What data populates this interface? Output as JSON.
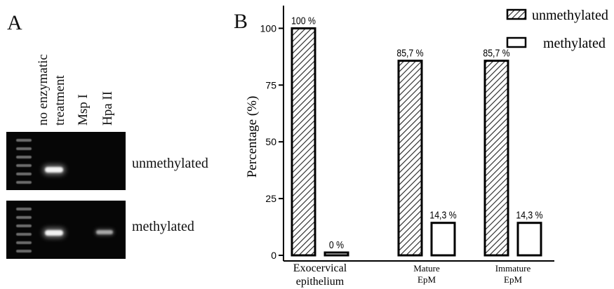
{
  "panel_a": {
    "letter": "A",
    "lane_labels": [
      "no enzymatic",
      "treatment",
      "Msp I",
      "Hpa II"
    ],
    "gels": [
      {
        "label": "unmethylated",
        "bands": [
          {
            "lane": 1,
            "intensity": "bright"
          }
        ]
      },
      {
        "label": "methylated",
        "bands": [
          {
            "lane": 1,
            "intensity": "bright"
          },
          {
            "lane": 3,
            "intensity": "faint"
          }
        ]
      }
    ]
  },
  "panel_b": {
    "letter": "B"
  },
  "chart_data": {
    "type": "bar",
    "title": "",
    "xlabel": "",
    "ylabel": "Percentage (%)",
    "ylim": [
      0,
      110
    ],
    "yticks": [
      0,
      25,
      50,
      75,
      100
    ],
    "grid": false,
    "legend_placement": "top-right",
    "categories": [
      {
        "lines": [
          "Exocervical",
          "epithelium"
        ],
        "large": true
      },
      {
        "lines": [
          "Mature",
          "EpM"
        ],
        "large": false
      },
      {
        "lines": [
          "Immature",
          "EpM"
        ],
        "large": false
      }
    ],
    "series": [
      {
        "name": "unmethylated",
        "fill": "hatched",
        "values": [
          100,
          85.7,
          85.7
        ],
        "labels": [
          "100 %",
          "85,7 %",
          "85,7 %"
        ]
      },
      {
        "name": "methylated",
        "fill": "white",
        "values": [
          0,
          14.3,
          14.3
        ],
        "labels": [
          "0 %",
          "14,3 %",
          "14,3 %"
        ]
      }
    ]
  }
}
